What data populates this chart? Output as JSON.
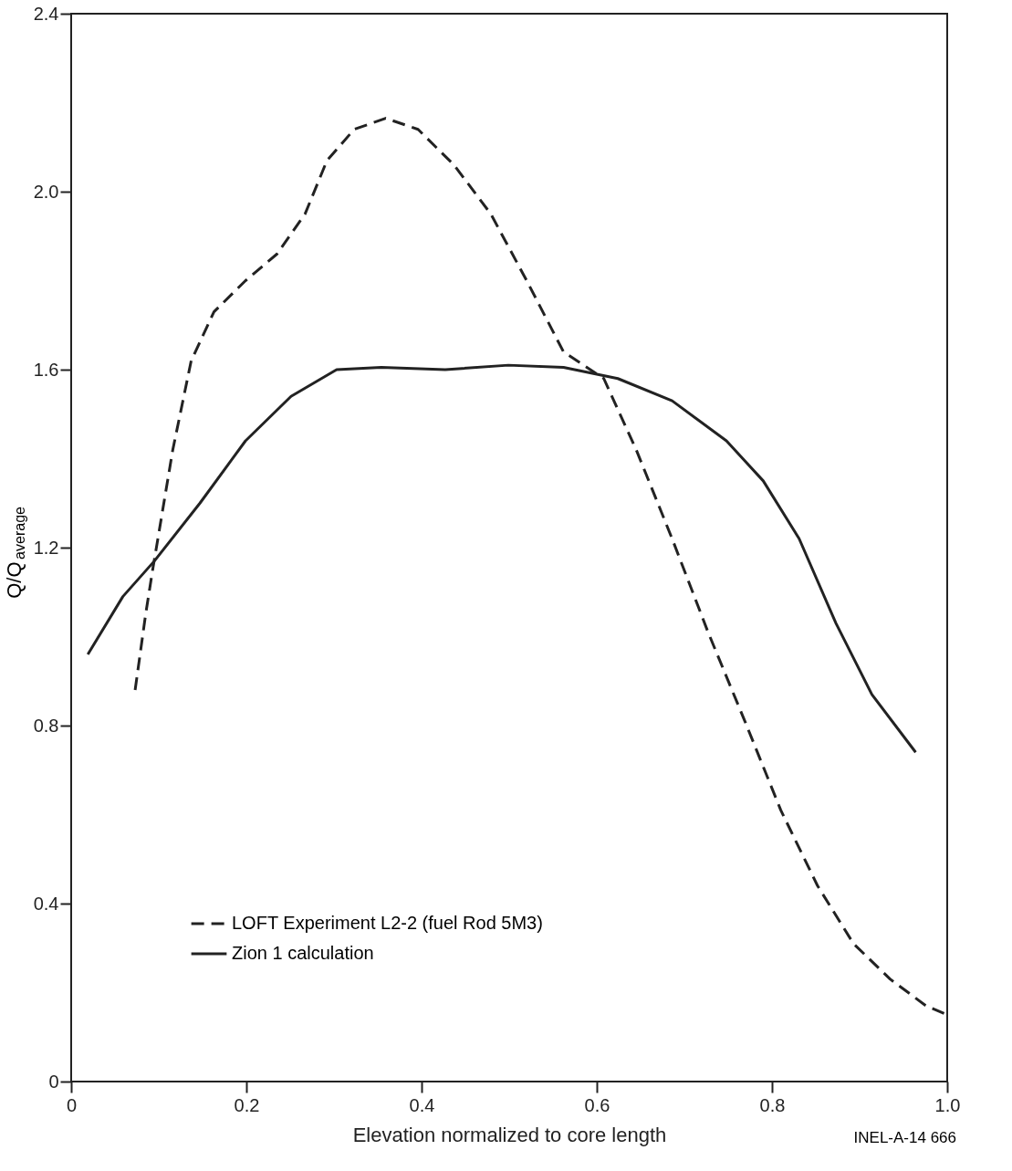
{
  "chart_data": {
    "type": "line",
    "xlabel": "Elevation normalized to core length",
    "ylabel": "Q/Q$_{average}$",
    "xlim": [
      0,
      1.0
    ],
    "ylim": [
      0,
      2.4
    ],
    "xticks": [
      0,
      0.2,
      0.4,
      0.6,
      0.8,
      {
        "value": 1.0,
        "label": "1.0"
      }
    ],
    "yticks": [
      0,
      0.4,
      0.8,
      1.2,
      1.6,
      {
        "value": 2.0,
        "label": "2.0"
      },
      2.4
    ],
    "grid": false,
    "legend": "bottom left",
    "marker": "none",
    "annotations": [
      "INEL-A-14 666"
    ],
    "series": [
      {
        "name": "LOFT Experiment L2-2 (fuel Rod 5M3)",
        "color": "#222222",
        "line_style": "dashed",
        "x": [
          0.073,
          0.085,
          0.093,
          0.116,
          0.137,
          0.163,
          0.199,
          0.235,
          0.267,
          0.292,
          0.323,
          0.359,
          0.396,
          0.437,
          0.479,
          0.52,
          0.562,
          0.608,
          0.645,
          0.686,
          0.727,
          0.769,
          0.81,
          0.852,
          0.893,
          0.935,
          0.976,
          1.0
        ],
        "values": [
          0.88,
          1.05,
          1.15,
          1.42,
          1.62,
          1.73,
          1.8,
          1.86,
          1.95,
          2.07,
          2.14,
          2.165,
          2.14,
          2.06,
          1.95,
          1.8,
          1.64,
          1.58,
          1.42,
          1.22,
          1.01,
          0.81,
          0.61,
          0.44,
          0.31,
          0.23,
          0.17,
          0.15
        ]
      },
      {
        "name": "Zion 1 calculation",
        "color": "#222222",
        "line_style": "solid",
        "x": [
          0.019,
          0.059,
          0.095,
          0.147,
          0.199,
          0.251,
          0.303,
          0.354,
          0.427,
          0.499,
          0.562,
          0.624,
          0.686,
          0.748,
          0.79,
          0.831,
          0.873,
          0.914,
          0.964
        ],
        "values": [
          0.96,
          1.09,
          1.17,
          1.3,
          1.44,
          1.54,
          1.6,
          1.605,
          1.6,
          1.61,
          1.605,
          1.58,
          1.53,
          1.44,
          1.35,
          1.22,
          1.03,
          0.87,
          0.74
        ]
      }
    ]
  }
}
